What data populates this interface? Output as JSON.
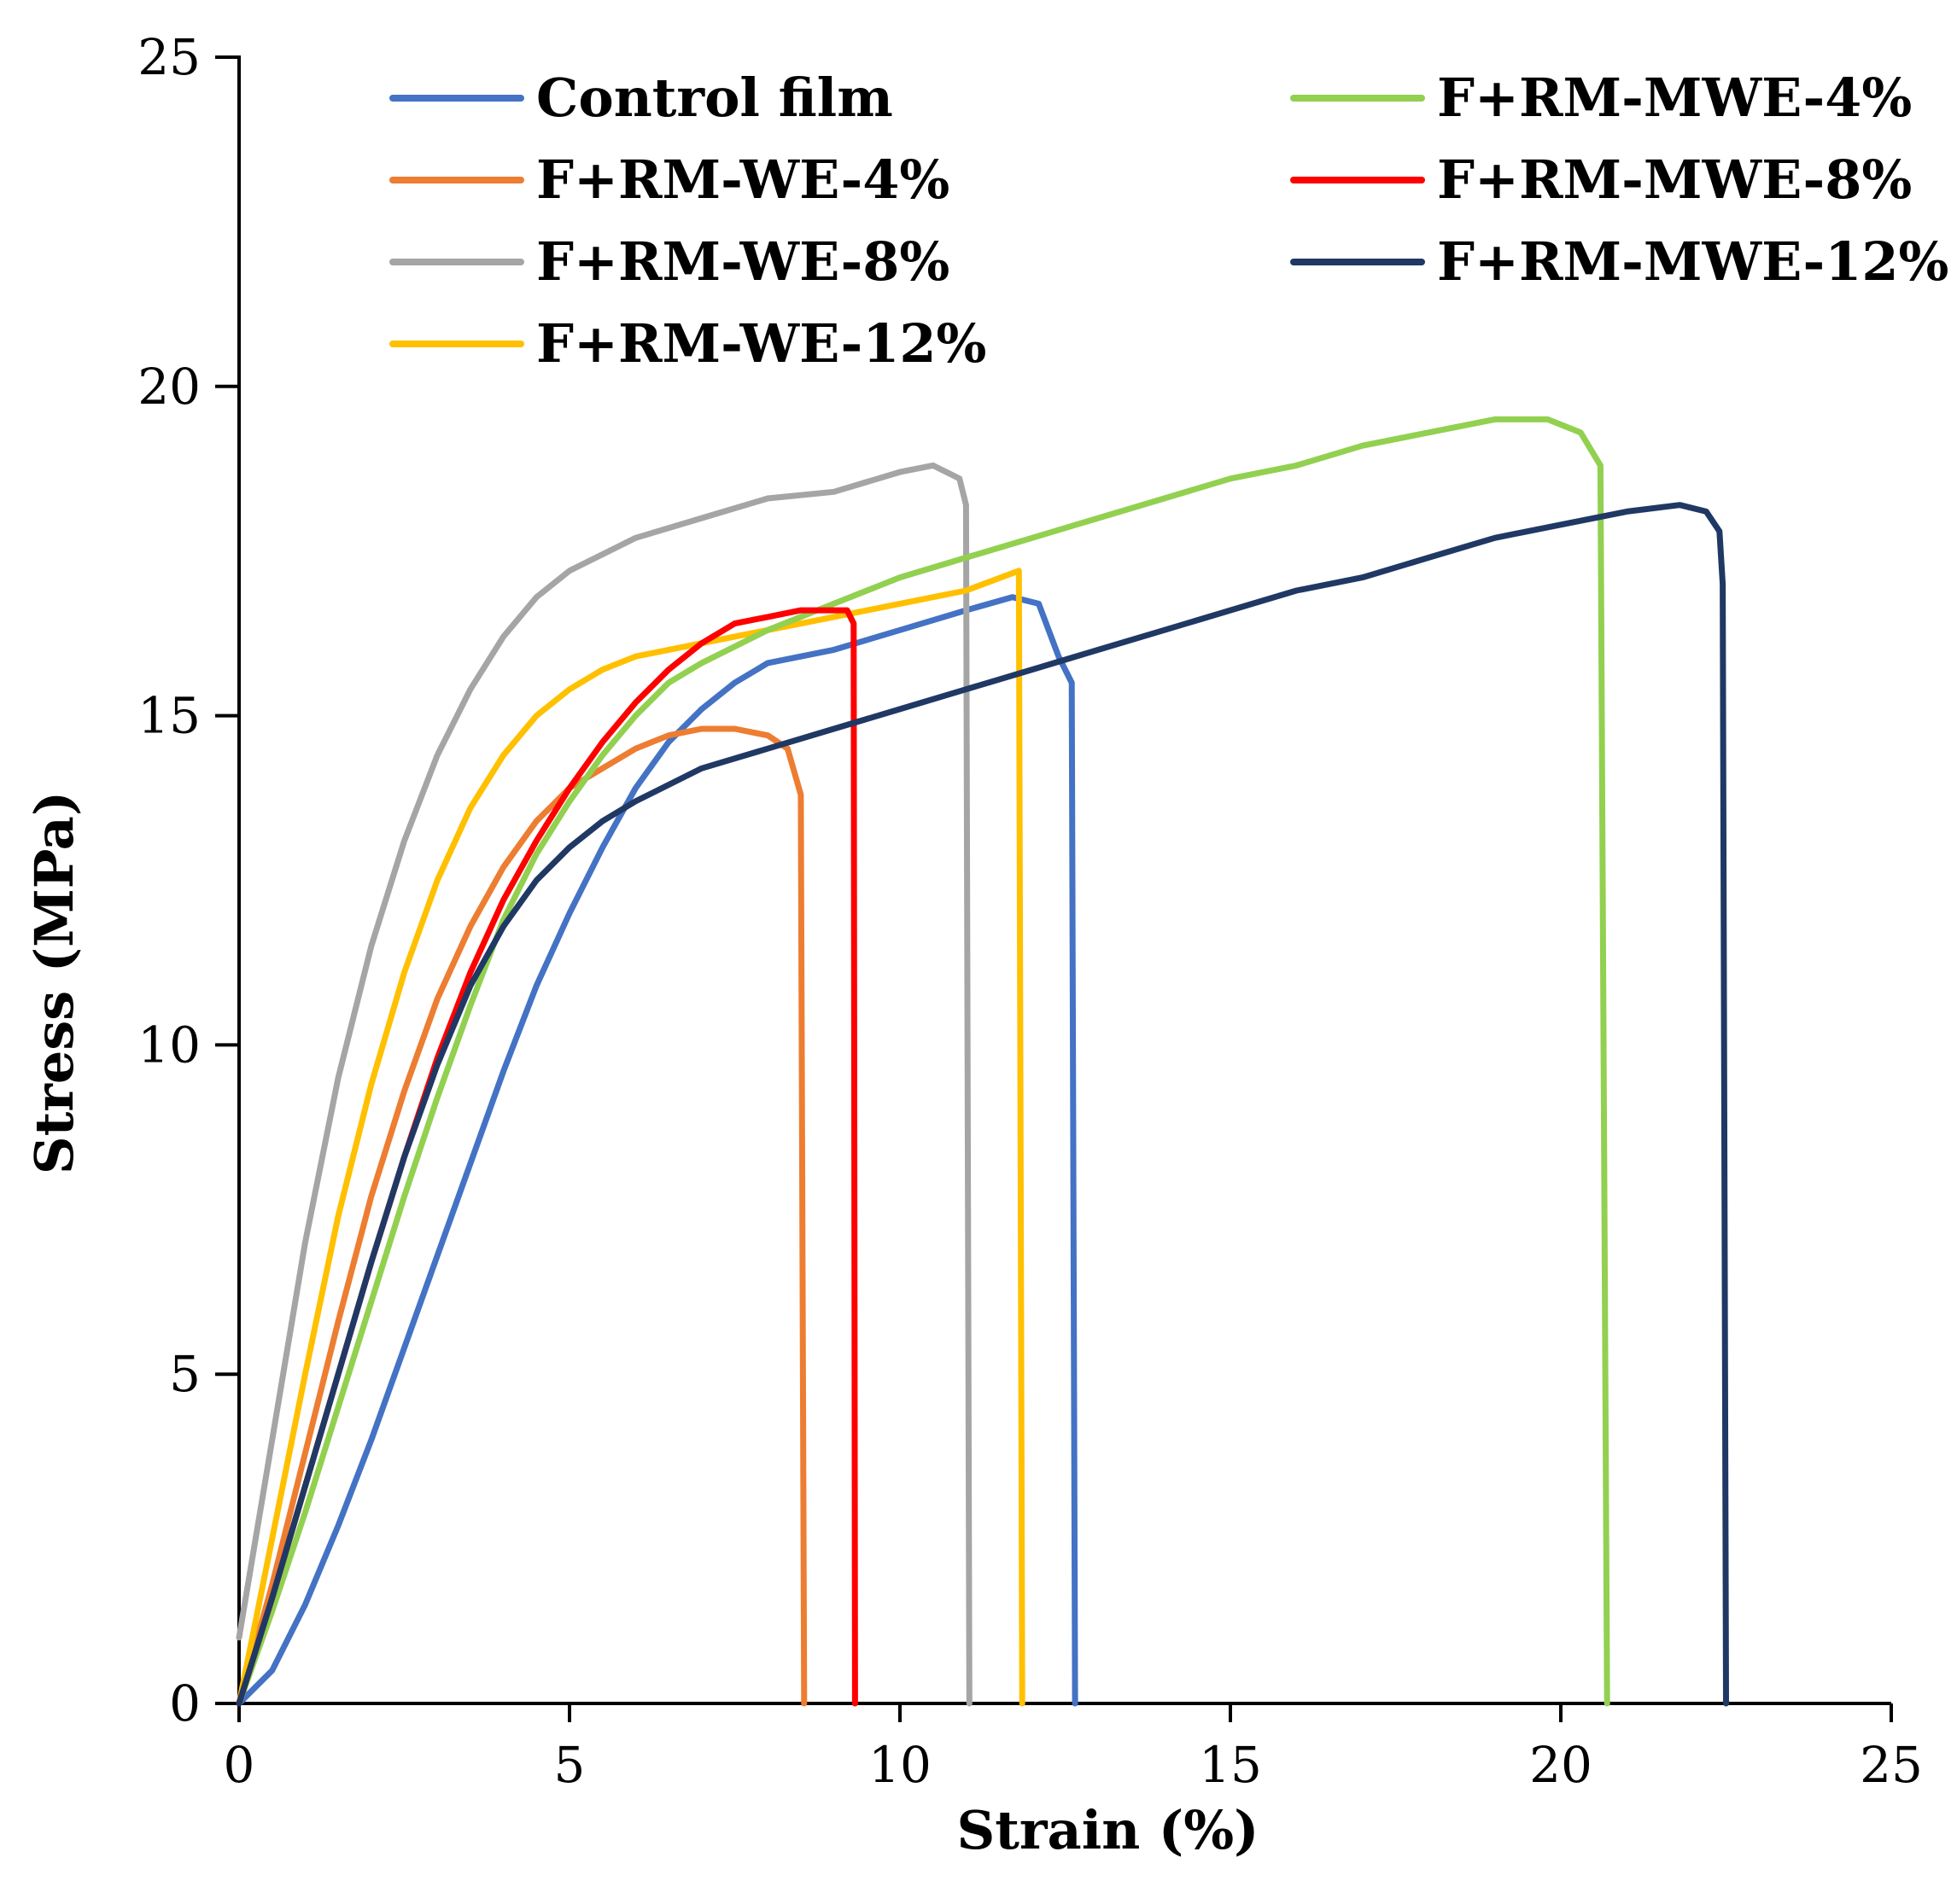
{
  "chart_data": {
    "type": "line",
    "title": "",
    "xlabel": "Strain (%)",
    "ylabel": "Stress (MPa)",
    "xlim": [
      0,
      25
    ],
    "ylim": [
      0,
      25
    ],
    "xticks": [
      0,
      5,
      10,
      15,
      20,
      25
    ],
    "yticks": [
      0,
      5,
      10,
      15,
      20,
      25
    ],
    "grid": false,
    "legend_position": "top",
    "series": [
      {
        "name": "Control film",
        "color": "#4472C4",
        "points": [
          [
            0,
            0
          ],
          [
            0.5,
            0.5
          ],
          [
            1,
            1.5
          ],
          [
            1.5,
            2.7
          ],
          [
            2,
            4
          ],
          [
            2.5,
            5.4
          ],
          [
            3,
            6.8
          ],
          [
            3.5,
            8.2
          ],
          [
            4,
            9.6
          ],
          [
            4.5,
            10.9
          ],
          [
            5,
            12
          ],
          [
            5.5,
            13
          ],
          [
            6,
            13.9
          ],
          [
            6.5,
            14.6
          ],
          [
            7,
            15.1
          ],
          [
            7.5,
            15.5
          ],
          [
            8,
            15.8
          ],
          [
            9,
            16
          ],
          [
            10,
            16.3
          ],
          [
            11,
            16.6
          ],
          [
            11.7,
            16.8
          ],
          [
            12.1,
            16.7
          ],
          [
            12.4,
            15.9
          ],
          [
            12.6,
            15.5
          ],
          [
            12.65,
            0
          ]
        ]
      },
      {
        "name": "F+RM-WE-4%",
        "color": "#ED7D31",
        "points": [
          [
            0,
            0
          ],
          [
            0.5,
            1.8
          ],
          [
            1,
            3.8
          ],
          [
            1.5,
            5.8
          ],
          [
            2,
            7.7
          ],
          [
            2.5,
            9.3
          ],
          [
            3,
            10.7
          ],
          [
            3.5,
            11.8
          ],
          [
            4,
            12.7
          ],
          [
            4.5,
            13.4
          ],
          [
            5,
            13.9
          ],
          [
            5.5,
            14.2
          ],
          [
            6,
            14.5
          ],
          [
            6.5,
            14.7
          ],
          [
            7,
            14.8
          ],
          [
            7.5,
            14.8
          ],
          [
            8,
            14.7
          ],
          [
            8.3,
            14.5
          ],
          [
            8.5,
            13.8
          ],
          [
            8.55,
            0
          ]
        ]
      },
      {
        "name": "F+RM-WE-8%",
        "color": "#A5A5A5",
        "points": [
          [
            0,
            1
          ],
          [
            0.5,
            4
          ],
          [
            1,
            7
          ],
          [
            1.5,
            9.5
          ],
          [
            2,
            11.5
          ],
          [
            2.5,
            13.1
          ],
          [
            3,
            14.4
          ],
          [
            3.5,
            15.4
          ],
          [
            4,
            16.2
          ],
          [
            4.5,
            16.8
          ],
          [
            5,
            17.2
          ],
          [
            6,
            17.7
          ],
          [
            7,
            18
          ],
          [
            8,
            18.3
          ],
          [
            9,
            18.4
          ],
          [
            10,
            18.7
          ],
          [
            10.5,
            18.8
          ],
          [
            10.9,
            18.6
          ],
          [
            11,
            18.2
          ],
          [
            11.05,
            0
          ]
        ]
      },
      {
        "name": "F+RM-WE-12%",
        "color": "#FFC000",
        "points": [
          [
            0,
            0
          ],
          [
            0.5,
            2.5
          ],
          [
            1,
            5
          ],
          [
            1.5,
            7.4
          ],
          [
            2,
            9.4
          ],
          [
            2.5,
            11.1
          ],
          [
            3,
            12.5
          ],
          [
            3.5,
            13.6
          ],
          [
            4,
            14.4
          ],
          [
            4.5,
            15
          ],
          [
            5,
            15.4
          ],
          [
            5.5,
            15.7
          ],
          [
            6,
            15.9
          ],
          [
            7,
            16.1
          ],
          [
            8,
            16.3
          ],
          [
            9,
            16.5
          ],
          [
            10,
            16.7
          ],
          [
            11,
            16.9
          ],
          [
            11.8,
            17.2
          ],
          [
            11.85,
            0
          ]
        ]
      },
      {
        "name": "F+RM-MWE-4%",
        "color": "#92D050",
        "points": [
          [
            0,
            0
          ],
          [
            0.5,
            1.4
          ],
          [
            1,
            2.9
          ],
          [
            1.5,
            4.5
          ],
          [
            2,
            6.1
          ],
          [
            2.5,
            7.7
          ],
          [
            3,
            9.2
          ],
          [
            3.5,
            10.6
          ],
          [
            4,
            11.9
          ],
          [
            4.5,
            12.9
          ],
          [
            5,
            13.7
          ],
          [
            5.5,
            14.4
          ],
          [
            6,
            15
          ],
          [
            6.5,
            15.5
          ],
          [
            7,
            15.8
          ],
          [
            8,
            16.3
          ],
          [
            9,
            16.7
          ],
          [
            10,
            17.1
          ],
          [
            11,
            17.4
          ],
          [
            12,
            17.7
          ],
          [
            13,
            18
          ],
          [
            14,
            18.3
          ],
          [
            15,
            18.6
          ],
          [
            16,
            18.8
          ],
          [
            17,
            19.1
          ],
          [
            18,
            19.3
          ],
          [
            19,
            19.5
          ],
          [
            19.8,
            19.5
          ],
          [
            20.3,
            19.3
          ],
          [
            20.6,
            18.8
          ],
          [
            20.7,
            0
          ]
        ]
      },
      {
        "name": "F+RM-MWE-8%",
        "color": "#FF0000",
        "points": [
          [
            0,
            0
          ],
          [
            0.5,
            1.6
          ],
          [
            1,
            3.3
          ],
          [
            1.5,
            5
          ],
          [
            2,
            6.7
          ],
          [
            2.5,
            8.3
          ],
          [
            3,
            9.8
          ],
          [
            3.5,
            11.1
          ],
          [
            4,
            12.2
          ],
          [
            4.5,
            13.1
          ],
          [
            5,
            13.9
          ],
          [
            5.5,
            14.6
          ],
          [
            6,
            15.2
          ],
          [
            6.5,
            15.7
          ],
          [
            7,
            16.1
          ],
          [
            7.5,
            16.4
          ],
          [
            8,
            16.5
          ],
          [
            8.5,
            16.6
          ],
          [
            9,
            16.6
          ],
          [
            9.2,
            16.6
          ],
          [
            9.3,
            16.4
          ],
          [
            9.32,
            0
          ]
        ]
      },
      {
        "name": "F+RM-MWE-12%",
        "color": "#203864",
        "points": [
          [
            0,
            0
          ],
          [
            0.5,
            1.6
          ],
          [
            1,
            3.3
          ],
          [
            1.5,
            5
          ],
          [
            2,
            6.7
          ],
          [
            2.5,
            8.3
          ],
          [
            3,
            9.7
          ],
          [
            3.5,
            10.9
          ],
          [
            4,
            11.8
          ],
          [
            4.5,
            12.5
          ],
          [
            5,
            13
          ],
          [
            5.5,
            13.4
          ],
          [
            6,
            13.7
          ],
          [
            7,
            14.2
          ],
          [
            8,
            14.5
          ],
          [
            9,
            14.8
          ],
          [
            10,
            15.1
          ],
          [
            11,
            15.4
          ],
          [
            12,
            15.7
          ],
          [
            13,
            16
          ],
          [
            14,
            16.3
          ],
          [
            15,
            16.6
          ],
          [
            16,
            16.9
          ],
          [
            17,
            17.1
          ],
          [
            18,
            17.4
          ],
          [
            19,
            17.7
          ],
          [
            20,
            17.9
          ],
          [
            21,
            18.1
          ],
          [
            21.8,
            18.2
          ],
          [
            22.2,
            18.1
          ],
          [
            22.4,
            17.8
          ],
          [
            22.45,
            17
          ],
          [
            22.5,
            0
          ]
        ]
      }
    ]
  },
  "legend": {
    "order": [
      "Control film",
      "F+RM-MWE-4%",
      "F+RM-WE-4%",
      "F+RM-MWE-8%",
      "F+RM-WE-8%",
      "F+RM-MWE-12%",
      "F+RM-WE-12%"
    ]
  }
}
